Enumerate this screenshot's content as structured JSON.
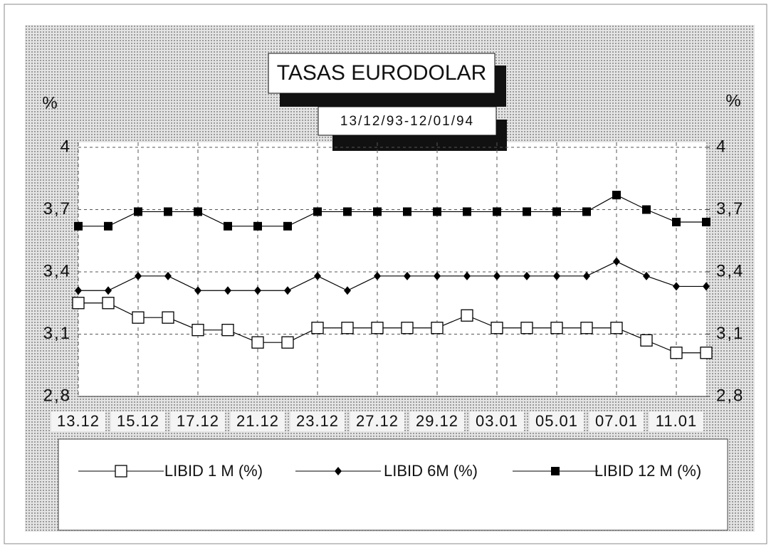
{
  "chart_data": {
    "type": "line",
    "title": "TASAS EURODOLAR",
    "subtitle": "13/12/93-12/01/94",
    "ylabel": "%",
    "y2label": "%",
    "categories": [
      "13.12",
      null,
      "15.12",
      null,
      "17.12",
      null,
      "21.12",
      null,
      "23.12",
      null,
      "27.12",
      null,
      "29.12",
      null,
      "03.01",
      null,
      "05.01",
      null,
      "07.01",
      null,
      "11.01",
      null
    ],
    "series": [
      {
        "name": "LIBID 1 M (%)",
        "color": "#000000",
        "marker": "open-square",
        "values": [
          3.25,
          3.25,
          3.18,
          3.18,
          3.12,
          3.12,
          3.06,
          3.06,
          3.13,
          3.13,
          3.13,
          3.13,
          3.13,
          3.19,
          3.13,
          3.13,
          3.13,
          3.13,
          3.13,
          3.07,
          3.01,
          3.01
        ]
      },
      {
        "name": "LIBID 6M (%)",
        "color": "#000000",
        "marker": "diamond",
        "values": [
          3.31,
          3.31,
          3.38,
          3.38,
          3.31,
          3.31,
          3.31,
          3.31,
          3.38,
          3.31,
          3.38,
          3.38,
          3.38,
          3.38,
          3.38,
          3.38,
          3.38,
          3.38,
          3.45,
          3.38,
          3.33,
          3.33
        ]
      },
      {
        "name": "LIBID 12 M (%)",
        "color": "#000000",
        "marker": "filled-square",
        "values": [
          3.62,
          3.62,
          3.69,
          3.69,
          3.69,
          3.62,
          3.62,
          3.62,
          3.69,
          3.69,
          3.69,
          3.69,
          3.69,
          3.69,
          3.69,
          3.69,
          3.69,
          3.69,
          3.77,
          3.7,
          3.64,
          3.64
        ]
      }
    ],
    "ylim": [
      2.8,
      4
    ],
    "yticks": [
      {
        "value": 2.8,
        "label": "2,8"
      },
      {
        "value": 3.1,
        "label": "3,1"
      },
      {
        "value": 3.4,
        "label": "3,4"
      },
      {
        "value": 3.7,
        "label": "3,7"
      },
      4
    ],
    "y2lim": [
      2.8,
      4
    ],
    "y2ticks": [
      {
        "value": 2.8,
        "label": "2,8"
      },
      {
        "value": 3.1,
        "label": "3,1"
      },
      {
        "value": 3.4,
        "label": "3,4"
      },
      {
        "value": 3.7,
        "label": "3,7"
      },
      4
    ],
    "grid": true
  }
}
